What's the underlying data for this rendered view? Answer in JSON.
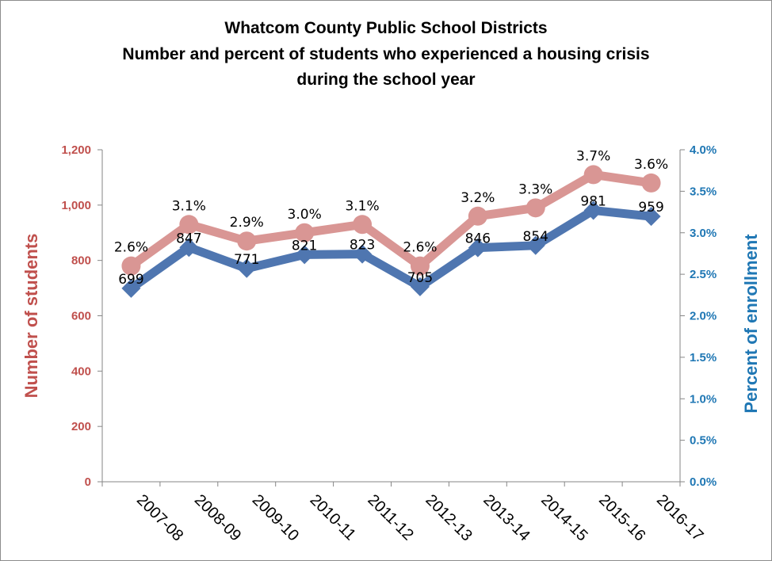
{
  "chart_data": {
    "type": "line",
    "title": [
      "Whatcom County Public School Districts",
      "Number and percent of students who experienced a housing crisis",
      "during the school year"
    ],
    "categories": [
      "2007-08",
      "2008-09",
      "2009-10",
      "2010-11",
      "2011-12",
      "2012-13",
      "2013-14",
      "2014-15",
      "2015-16",
      "2016-17"
    ],
    "y_left": {
      "label": "Number of students",
      "range": [
        0,
        1200
      ],
      "ticks": [
        "0",
        "200",
        "400",
        "600",
        "800",
        "1,000",
        "1,200"
      ],
      "color": "#c0504d"
    },
    "y_right": {
      "label": "Percent of enrollment",
      "range": [
        0,
        4.0
      ],
      "ticks": [
        "0.0%",
        "0.5%",
        "1.0%",
        "1.5%",
        "2.0%",
        "2.5%",
        "3.0%",
        "3.5%",
        "4.0%"
      ],
      "color": "#1f77b4"
    },
    "series": [
      {
        "axis": "left",
        "color": "#4f76b0",
        "marker": "diamond",
        "values": [
          699,
          847,
          771,
          821,
          823,
          705,
          846,
          854,
          981,
          959
        ],
        "labels": [
          "699",
          "847",
          "771",
          "821",
          "823",
          "705",
          "846",
          "854",
          "981",
          "959"
        ]
      },
      {
        "axis": "right",
        "color": "#d99694",
        "marker": "circle",
        "values": [
          2.6,
          3.1,
          2.9,
          3.0,
          3.1,
          2.6,
          3.2,
          3.3,
          3.7,
          3.6
        ],
        "labels": [
          "2.6%",
          "3.1%",
          "2.9%",
          "3.0%",
          "3.1%",
          "2.6%",
          "3.2%",
          "3.3%",
          "3.7%",
          "3.6%"
        ]
      }
    ],
    "grid": false,
    "legend": "none"
  }
}
